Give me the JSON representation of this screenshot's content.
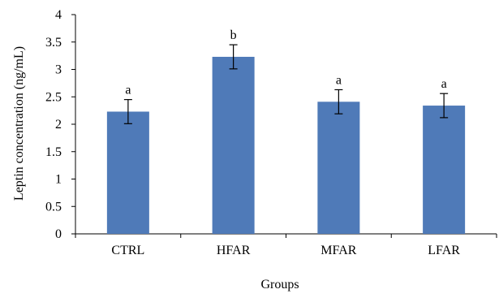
{
  "chart_data": {
    "type": "bar",
    "categories": [
      "CTRL",
      "HFAR",
      "MFAR",
      "LFAR"
    ],
    "values": [
      2.23,
      3.23,
      2.41,
      2.34
    ],
    "errors": [
      0.22,
      0.22,
      0.22,
      0.22
    ],
    "significance_labels": [
      "a",
      "b",
      "a",
      "a"
    ],
    "title": "",
    "xlabel": "Groups",
    "ylabel": "Leptin concentration (ng/mL)",
    "ylim": [
      0,
      4
    ],
    "yticks": [
      0,
      0.5,
      1,
      1.5,
      2,
      2.5,
      3,
      3.5,
      4
    ],
    "ytick_labels": [
      "0",
      "0.5",
      "1",
      "1.5",
      "2",
      "2.5",
      "3",
      "3.5",
      "4"
    ],
    "grid": false,
    "legend": "none",
    "bar_color": "#4f7ab8",
    "error_bar_color": "#000000",
    "axis_color": "#000000"
  }
}
